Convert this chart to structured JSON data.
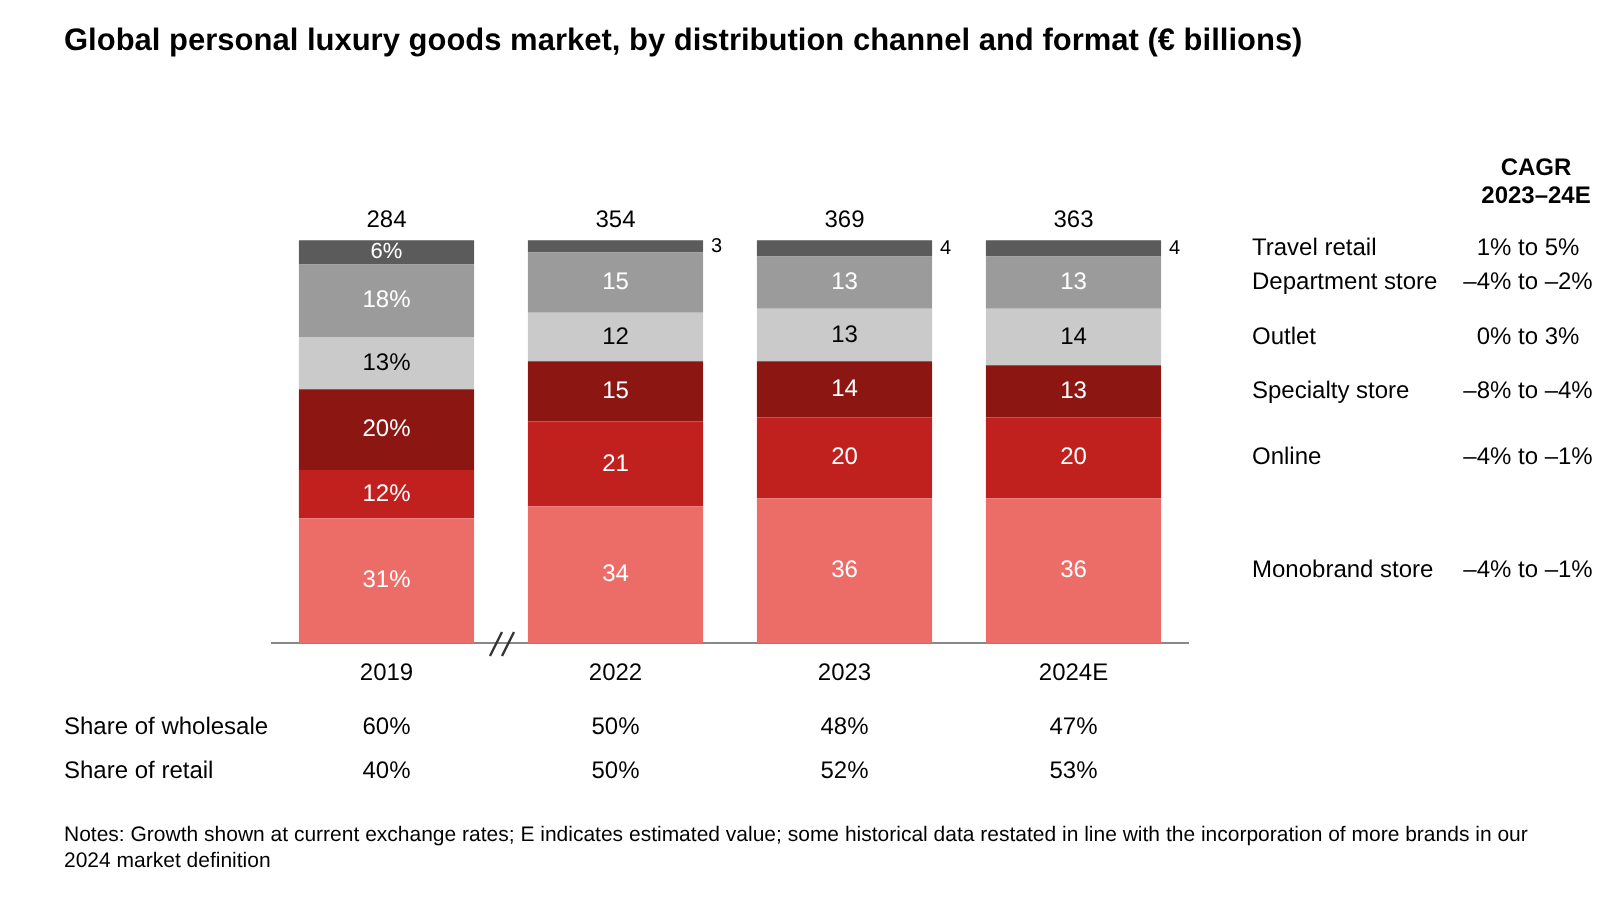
{
  "chart_data": {
    "type": "bar",
    "stacked": true,
    "tick_labels": "x",
    "title": "Global personal luxury goods market, by distribution channel and format (€ billions)",
    "categories": [
      "2019",
      "2022",
      "2023",
      "2024E"
    ],
    "series": [
      {
        "name": "Monobrand store",
        "color": "#ec6d68",
        "values": [
          31,
          34,
          36,
          36
        ],
        "value_labels": [
          "31%",
          "34",
          "36",
          "36"
        ]
      },
      {
        "name": "Online",
        "color": "#c0211f",
        "values": [
          12,
          21,
          20,
          20
        ],
        "value_labels": [
          "12%",
          "21",
          "20",
          "20"
        ]
      },
      {
        "name": "Specialty store",
        "color": "#8c1712",
        "values": [
          20,
          15,
          14,
          13
        ],
        "value_labels": [
          "20%",
          "15",
          "14",
          "13"
        ]
      },
      {
        "name": "Outlet",
        "color": "#cacaca",
        "values": [
          13,
          12,
          13,
          14
        ],
        "value_labels": [
          "13%",
          "12",
          "13",
          "14"
        ]
      },
      {
        "name": "Department store",
        "color": "#9b9b9b",
        "values": [
          18,
          15,
          13,
          13
        ],
        "value_labels": [
          "18%",
          "15",
          "13",
          "13"
        ]
      },
      {
        "name": "Travel retail",
        "color": "#5b5b5b",
        "values": [
          6,
          3,
          4,
          4
        ],
        "value_labels": [
          "6%",
          "3",
          "4",
          "4"
        ]
      }
    ],
    "annotations": [
      {
        "text": "284",
        "x": "2019",
        "y": 100
      },
      {
        "text": "354",
        "x": "2022",
        "y": 100
      },
      {
        "text": "369",
        "x": "2023",
        "y": 100
      },
      {
        "text": "363",
        "x": "2024E",
        "y": 100
      },
      "CAGR\n2023–24E",
      "–4% to –1%",
      "–4% to –1%",
      "–8% to –4%",
      "0% to 3%",
      "–4% to –2%",
      "1% to 5%",
      "Share of wholesale",
      "60%",
      "50%",
      "48%",
      "47%",
      "Share of retail",
      "40%",
      "50%",
      "52%",
      "53%",
      "Notes: Growth shown at current exchange rates; E indicates estimated value; some historical data restated in line with the incorporation of more brands in our 2024 market definition"
    ]
  }
}
